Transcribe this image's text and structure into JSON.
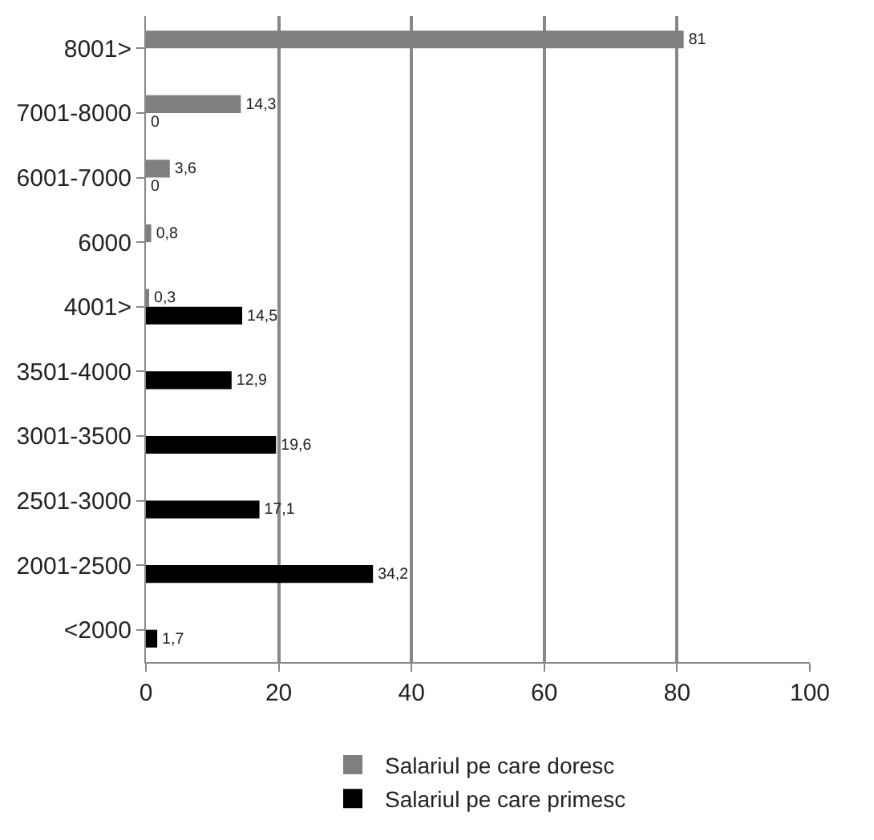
{
  "chart_data": {
    "type": "bar",
    "orientation": "horizontal",
    "categories": [
      "8001>",
      "7001-8000",
      "6001-7000",
      "6000",
      "4001>",
      "3501-4000",
      "3001-3500",
      "2501-3000",
      "2001-2500",
      "<2000"
    ],
    "series": [
      {
        "name": "Salariul pe care doresc",
        "color": "#7f7f7f",
        "values": [
          81,
          14.3,
          3.6,
          0.8,
          0.3,
          null,
          null,
          null,
          null,
          null
        ],
        "value_labels": [
          "81",
          "14,3",
          "3,6",
          "0,8",
          "0,3",
          null,
          null,
          null,
          null,
          null
        ]
      },
      {
        "name": "Salariul pe care primesc",
        "color": "#000000",
        "values": [
          null,
          0,
          0,
          null,
          14.5,
          12.9,
          19.6,
          17.1,
          34.2,
          1.7
        ],
        "value_labels": [
          null,
          "0",
          "0",
          null,
          "14,5",
          "12,9",
          "19,6",
          "17,1",
          "34,2",
          "1,7"
        ]
      }
    ],
    "xlim": [
      0,
      100
    ],
    "xticks": [
      0,
      20,
      40,
      60,
      80,
      100
    ],
    "grid": "x",
    "legend": "bottom"
  }
}
